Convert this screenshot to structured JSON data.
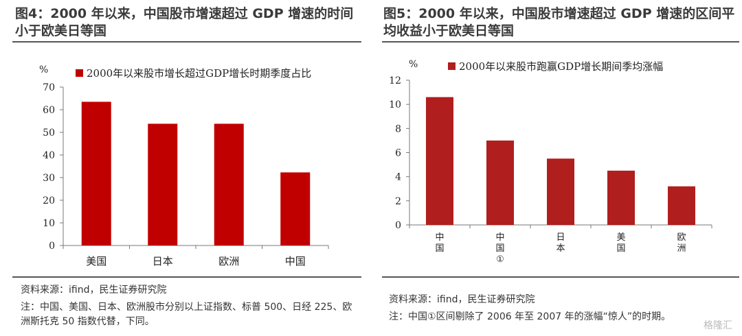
{
  "left": {
    "title": "图4：2000 年以来，中国股市增速超过 GDP 增速的时间小于欧美日等国",
    "source": "资料来源：ifind，民生证券研究院",
    "note": "注：中国、美国、日本、欧洲股市分别以上证指数、标普 500、日经 225、欧洲斯托克 50 指数代替，下同。",
    "chart_data": {
      "type": "bar",
      "unit_label": "%",
      "legend": "2000年以来股市增长超过GDP增长时期季度占比",
      "legend_position": "top",
      "categories": [
        "美国",
        "日本",
        "欧洲",
        "中国"
      ],
      "values": [
        63.5,
        53.8,
        53.8,
        32.3
      ],
      "yticks": [
        0,
        10,
        20,
        30,
        40,
        50,
        60,
        70
      ],
      "ylim": [
        0,
        70
      ],
      "color": "#C00000",
      "grid": false
    }
  },
  "right": {
    "title": "图5：2000 年以来，中国股市增速超过 GDP 增速的区间平均收益小于欧美日等国",
    "source": "资料来源：ifind，民生证券研究院",
    "note": "注：中国①区间剔除了 2006 年至 2007 年的涨幅“惊人”的时期。",
    "chart_data": {
      "type": "bar",
      "unit_label": "%",
      "legend": "2000年以来股市跑赢GDP增长期间季均涨幅",
      "legend_position": "top",
      "categories": [
        "中国",
        "中国①",
        "日本",
        "美国",
        "欧洲"
      ],
      "values": [
        10.6,
        7.0,
        5.5,
        4.5,
        3.2
      ],
      "yticks": [
        0,
        2,
        4,
        6,
        8,
        10,
        12
      ],
      "ylim": [
        0,
        12
      ],
      "color": "#B01E1E",
      "grid": false
    }
  },
  "watermark": "格隆汇"
}
